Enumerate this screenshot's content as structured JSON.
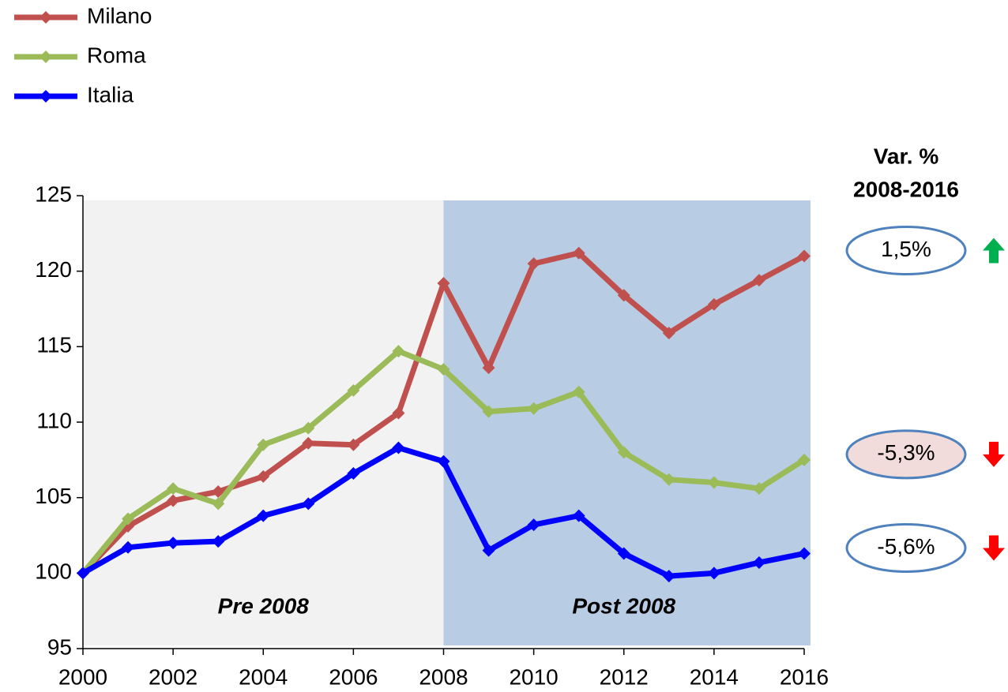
{
  "chart_data": {
    "type": "line",
    "x": [
      2000,
      2001,
      2002,
      2003,
      2004,
      2005,
      2006,
      2007,
      2008,
      2009,
      2010,
      2011,
      2012,
      2013,
      2014,
      2015,
      2016
    ],
    "series": [
      {
        "name": "Milano",
        "color": "#c0504d",
        "values": [
          100,
          103.1,
          104.8,
          105.4,
          106.4,
          108.6,
          108.5,
          110.6,
          119.2,
          113.6,
          120.5,
          121.2,
          118.4,
          115.9,
          117.8,
          119.4,
          121.0
        ]
      },
      {
        "name": "Roma",
        "color": "#9bbb59",
        "values": [
          100,
          103.6,
          105.6,
          104.6,
          108.5,
          109.6,
          112.1,
          114.7,
          113.5,
          110.7,
          110.9,
          112.0,
          108.0,
          106.2,
          106.0,
          105.6,
          107.5
        ]
      },
      {
        "name": "Italia",
        "color": "#0000ff",
        "values": [
          100,
          101.7,
          102.0,
          102.1,
          103.8,
          104.6,
          106.6,
          108.3,
          107.4,
          101.5,
          103.2,
          103.8,
          101.3,
          99.8,
          100.0,
          100.7,
          101.3
        ]
      }
    ],
    "xlim": [
      2000,
      2016
    ],
    "xticks": [
      2000,
      2002,
      2004,
      2006,
      2008,
      2010,
      2012,
      2014,
      2016
    ],
    "ylim": [
      95,
      125
    ],
    "yticks": [
      95,
      100,
      105,
      110,
      115,
      120,
      125
    ],
    "legend": "top-left",
    "regions": [
      {
        "label": "Pre 2008",
        "x": [
          2000,
          2008
        ],
        "color": "#f2f2f2"
      },
      {
        "label": "Post 2008",
        "x": [
          2008,
          2016
        ],
        "color": "#b8cce4"
      }
    ],
    "variation": {
      "title": [
        "Var. %",
        "2008-2016"
      ],
      "items": [
        {
          "label": "1,5%",
          "direction": "up",
          "fill": "#ffffff"
        },
        {
          "label": "-5,3%",
          "direction": "down",
          "fill": "#f2dcdb"
        },
        {
          "label": "-5,6%",
          "direction": "down",
          "fill": "#ffffff"
        }
      ]
    }
  }
}
